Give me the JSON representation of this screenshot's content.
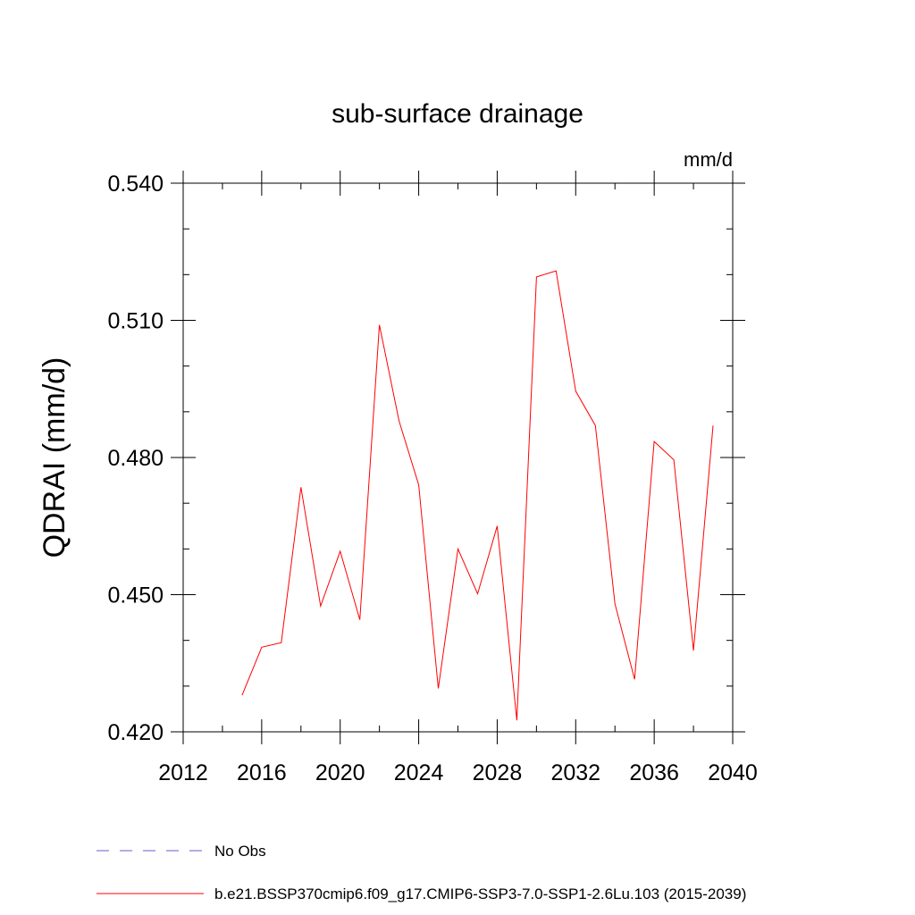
{
  "chart_data": {
    "type": "line",
    "title": "sub-surface drainage",
    "units": "mm/d",
    "xlabel": "",
    "ylabel": "QDRAI  (mm/d)",
    "xlim": [
      2012,
      2040
    ],
    "ylim": [
      0.42,
      0.54
    ],
    "x_ticks": [
      {
        "value": 2012,
        "label": "2012"
      },
      {
        "value": 2016,
        "label": "2016"
      },
      {
        "value": 2020,
        "label": "2020"
      },
      {
        "value": 2024,
        "label": "2024"
      },
      {
        "value": 2028,
        "label": "2028"
      },
      {
        "value": 2032,
        "label": "2032"
      },
      {
        "value": 2036,
        "label": "2036"
      },
      {
        "value": 2040,
        "label": "2040"
      }
    ],
    "y_ticks": [
      {
        "value": 0.42,
        "label": "0.420"
      },
      {
        "value": 0.45,
        "label": "0.450"
      },
      {
        "value": 0.48,
        "label": "0.480"
      },
      {
        "value": 0.51,
        "label": "0.510"
      },
      {
        "value": 0.54,
        "label": "0.540"
      }
    ],
    "x_minor_step": 2,
    "y_minor_step": 0.01,
    "grid": false,
    "legend_position": "bottom",
    "series": [
      {
        "name": "b.e21.BSSP370cmip6.f09_g17.CMIP6-SSP3-7.0-SSP1-2.6Lu.103 (2015-2039)",
        "color": "#ff0000",
        "style": "solid",
        "x": [
          2015,
          2016,
          2017,
          2018,
          2019,
          2020,
          2021,
          2022,
          2023,
          2024,
          2025,
          2026,
          2027,
          2028,
          2029,
          2030,
          2031,
          2032,
          2033,
          2034,
          2035,
          2036,
          2037,
          2038,
          2039
        ],
        "values": [
          0.428,
          0.4385,
          0.4395,
          0.4735,
          0.4475,
          0.4595,
          0.4445,
          0.509,
          0.488,
          0.474,
          0.4295,
          0.46,
          0.4502,
          0.465,
          0.4225,
          0.5195,
          0.5208,
          0.4945,
          0.487,
          0.448,
          0.4315,
          0.4835,
          0.4795,
          0.4378,
          0.487
        ]
      }
    ],
    "legend": [
      {
        "label": "No Obs",
        "color": "#6a5acd",
        "style": "dashed"
      },
      {
        "label": "b.e21.BSSP370cmip6.f09_g17.CMIP6-SSP3-7.0-SSP1-2.6Lu.103 (2015-2039)",
        "color": "#ff0000",
        "style": "solid"
      }
    ]
  }
}
